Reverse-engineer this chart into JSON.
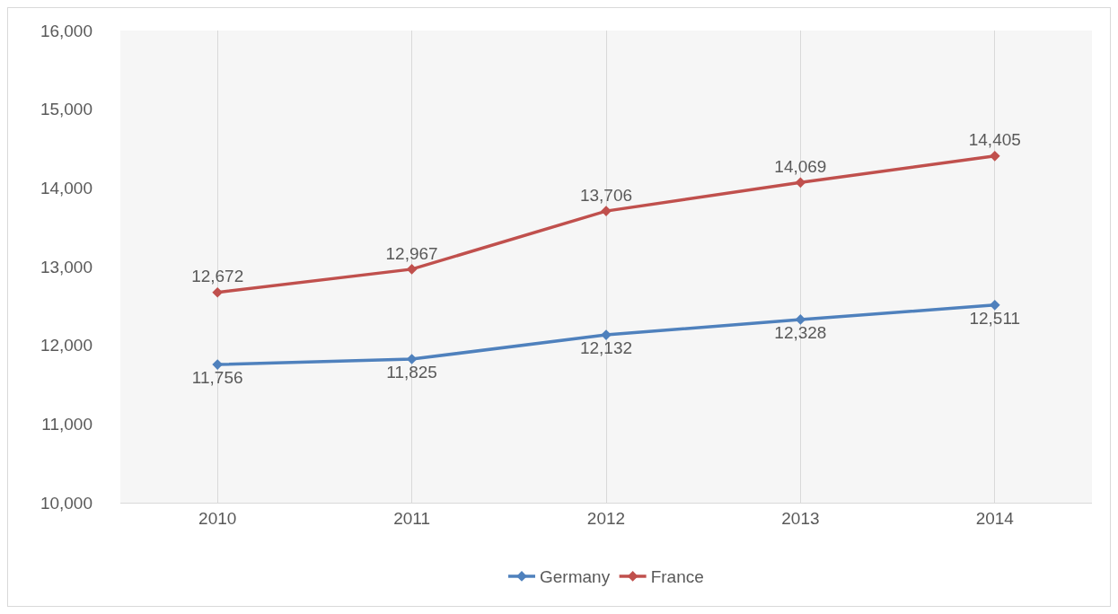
{
  "chart_data": {
    "type": "line",
    "categories": [
      "2010",
      "2011",
      "2012",
      "2013",
      "2014"
    ],
    "series": [
      {
        "name": "Germany",
        "color": "#4f81bd",
        "values": [
          11756,
          11825,
          12132,
          12328,
          12511
        ],
        "value_labels": [
          "11,756",
          "11,825",
          "12,132",
          "12,328",
          "12,511"
        ]
      },
      {
        "name": "France",
        "color": "#c0504d",
        "values": [
          12672,
          12967,
          13706,
          14069,
          14405
        ],
        "value_labels": [
          "12,672",
          "12,967",
          "13,706",
          "14,069",
          "14,405"
        ]
      }
    ],
    "ylim": [
      10000,
      16000
    ],
    "yticks": [
      {
        "value": 10000,
        "label": "10,000"
      },
      {
        "value": 11000,
        "label": "11,000"
      },
      {
        "value": 12000,
        "label": "12,000"
      },
      {
        "value": 13000,
        "label": "13,000"
      },
      {
        "value": 14000,
        "label": "14,000"
      },
      {
        "value": 15000,
        "label": "15,000"
      },
      {
        "value": 16000,
        "label": "16,000"
      }
    ],
    "grid": "x",
    "legend": "bottom",
    "marker": "diamond",
    "line_style": "solid"
  }
}
